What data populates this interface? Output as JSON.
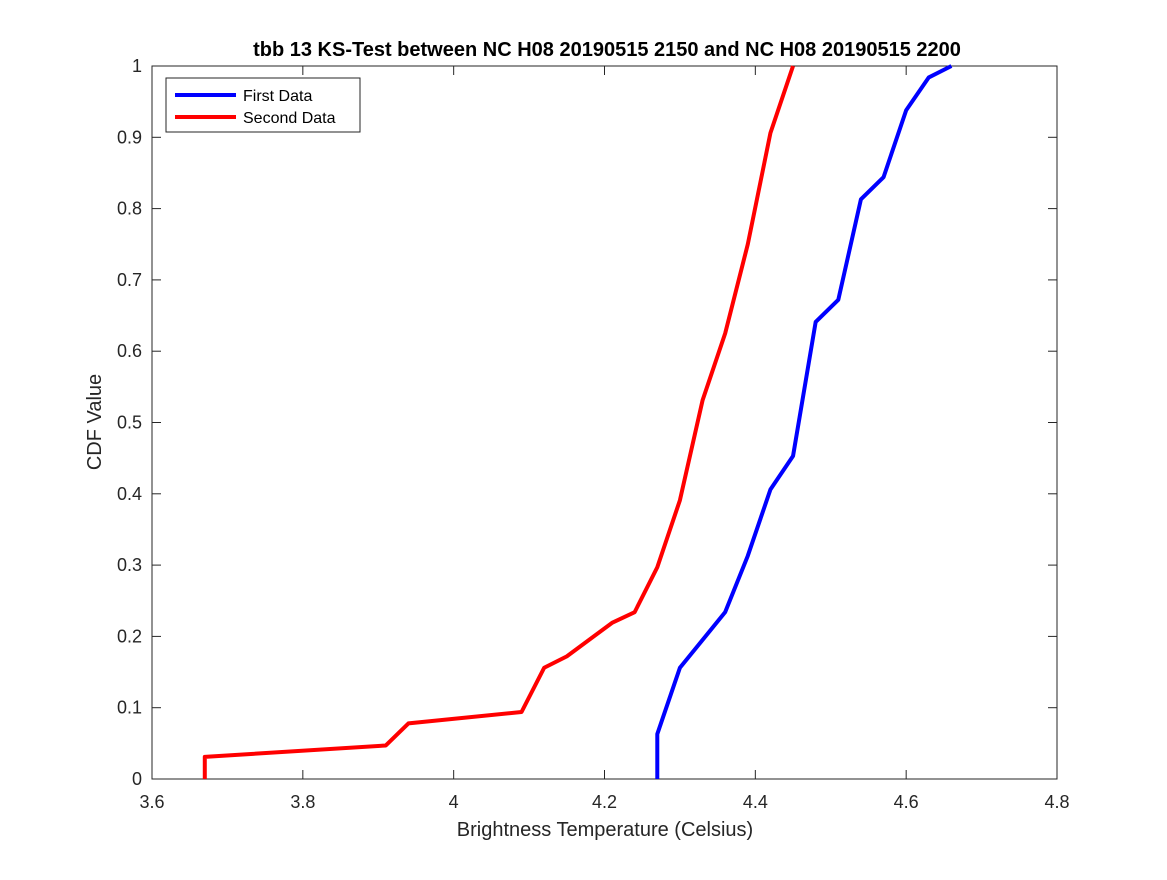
{
  "chart_data": {
    "type": "line",
    "title": "tbb 13 KS-Test between NC H08 20190515 2150 and NC H08 20190515 2200",
    "xlabel": "Brightness Temperature (Celsius)",
    "ylabel": "CDF Value",
    "xlim": [
      3.6,
      4.8
    ],
    "ylim": [
      0,
      1
    ],
    "xticks": [
      "3.6",
      "3.8",
      "4",
      "4.2",
      "4.4",
      "4.6",
      "4.8"
    ],
    "yticks": [
      "0",
      "0.1",
      "0.2",
      "0.3",
      "0.4",
      "0.5",
      "0.6",
      "0.7",
      "0.8",
      "0.9",
      "1"
    ],
    "grid": false,
    "legend_position": "top-left",
    "series": [
      {
        "name": "First Data",
        "color": "#0000ff",
        "points": [
          [
            4.27,
            0.0
          ],
          [
            4.27,
            0.063
          ],
          [
            4.3,
            0.156
          ],
          [
            4.36,
            0.234
          ],
          [
            4.39,
            0.313
          ],
          [
            4.42,
            0.406
          ],
          [
            4.45,
            0.453
          ],
          [
            4.48,
            0.641
          ],
          [
            4.51,
            0.672
          ],
          [
            4.54,
            0.813
          ],
          [
            4.57,
            0.844
          ],
          [
            4.6,
            0.938
          ],
          [
            4.63,
            0.984
          ],
          [
            4.66,
            1.0
          ]
        ]
      },
      {
        "name": "Second Data",
        "color": "#ff0000",
        "points": [
          [
            3.67,
            0.0
          ],
          [
            3.67,
            0.031
          ],
          [
            3.91,
            0.047
          ],
          [
            3.94,
            0.078
          ],
          [
            4.09,
            0.094
          ],
          [
            4.12,
            0.156
          ],
          [
            4.15,
            0.172
          ],
          [
            4.21,
            0.219
          ],
          [
            4.24,
            0.234
          ],
          [
            4.27,
            0.297
          ],
          [
            4.3,
            0.391
          ],
          [
            4.33,
            0.531
          ],
          [
            4.36,
            0.625
          ],
          [
            4.39,
            0.75
          ],
          [
            4.42,
            0.906
          ],
          [
            4.45,
            1.0
          ]
        ]
      }
    ]
  }
}
